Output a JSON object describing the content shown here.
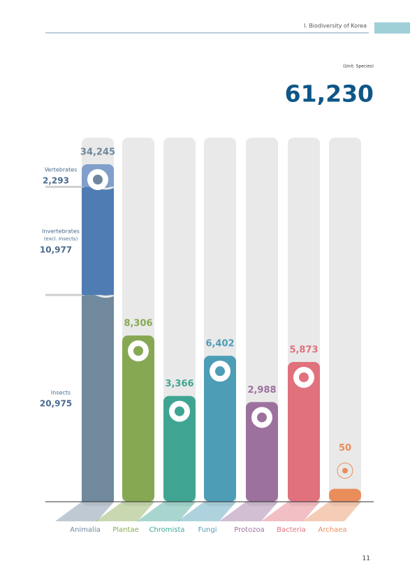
{
  "chart_data": {
    "type": "bar",
    "header": "Ⅰ. Biodiversity of Korea",
    "unit": "(Unit: Species)",
    "total": "61,230",
    "scale": "sqrt",
    "categories": [
      "Animalia",
      "Plantae",
      "Chromista",
      "Fungi",
      "Protozoa",
      "Bacteria",
      "Archaea"
    ],
    "values": [
      34245,
      8306,
      3366,
      6402,
      2988,
      5873,
      50
    ],
    "value_labels": [
      "34,245",
      "8,306",
      "3,366",
      "6,402",
      "2,988",
      "5,873",
      "50"
    ],
    "colors": [
      "#6f889d",
      "#87a853",
      "#3fa592",
      "#4e9db6",
      "#9c719d",
      "#e0717d",
      "#e98d5b"
    ],
    "breakdown": [
      {
        "name": "Insects",
        "value": 20975,
        "value_label": "20,975",
        "color": "#71899c"
      },
      {
        "name": "Invertebrates",
        "sublabel": "(excl. Insects)",
        "value": 10977,
        "value_label": "10,977",
        "color": "#4f7cb3"
      },
      {
        "name": "Vertebrates",
        "value": 2293,
        "value_label": "2,293",
        "color": "#819fca"
      }
    ],
    "page_number": "11"
  }
}
